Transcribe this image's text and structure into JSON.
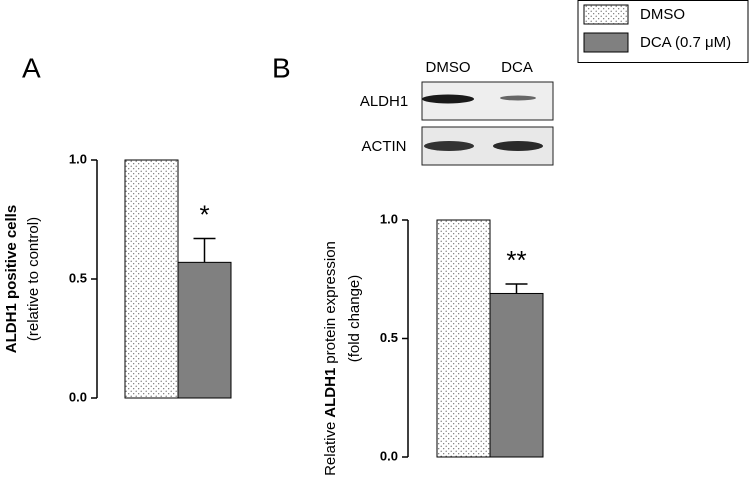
{
  "legend": {
    "entries": [
      {
        "name": "DMSO",
        "fill": "dots"
      },
      {
        "name": "DCA (0.7 μM)",
        "color": "#808080"
      }
    ]
  },
  "chart_data": [
    {
      "type": "bar",
      "panel": "A",
      "ylabel": "ALDH1 positive cells",
      "ylabel2": "(relative to control)",
      "values": [
        1.0,
        0.57
      ],
      "errors": [
        null,
        0.1
      ],
      "annotations": [
        null,
        "*"
      ],
      "ylim": [
        0,
        1.0
      ],
      "yticks": [
        {
          "value": 0,
          "label": "0.0"
        },
        {
          "value": 0.5,
          "label": "0.5"
        },
        {
          "value": 1.0,
          "label": "1.0"
        }
      ]
    },
    {
      "type": "bar",
      "panel": "B",
      "ylabel": {
        "parts": [
          "Relative",
          "ALDH1",
          "protein expression"
        ],
        "bold": [
          false,
          true,
          false
        ]
      },
      "ylabel2": "(fold change)",
      "blot": {
        "columns": [
          "DMSO",
          "DCA"
        ],
        "rows": [
          "ALDH1",
          "ACTIN"
        ]
      },
      "values": [
        1.0,
        0.69
      ],
      "errors": [
        null,
        0.04
      ],
      "annotations": [
        null,
        "**"
      ],
      "ylim": [
        0,
        1.0
      ],
      "yticks": [
        {
          "value": 0,
          "label": "0.0"
        },
        {
          "value": 0.5,
          "label": "0.5"
        },
        {
          "value": 1.0,
          "label": "1.0"
        }
      ]
    }
  ]
}
